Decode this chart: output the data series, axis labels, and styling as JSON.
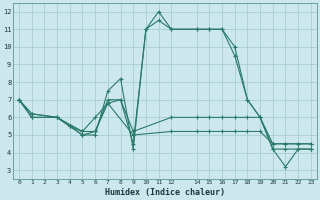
{
  "xlabel": "Humidex (Indice chaleur)",
  "bg_color": "#cce8ee",
  "grid_color": "#a8cdd4",
  "line_color": "#2a7a6a",
  "xlim": [
    -0.5,
    23.5
  ],
  "ylim": [
    2.5,
    12.5
  ],
  "xticks": [
    0,
    1,
    2,
    3,
    4,
    5,
    6,
    7,
    8,
    9,
    10,
    11,
    12,
    14,
    15,
    16,
    17,
    18,
    19,
    20,
    21,
    22,
    23
  ],
  "yticks": [
    3,
    4,
    5,
    6,
    7,
    8,
    9,
    10,
    11,
    12
  ],
  "lines": [
    {
      "x": [
        0,
        1,
        3,
        4,
        5,
        6,
        7,
        8,
        9,
        10,
        11,
        12,
        14,
        15,
        16,
        17,
        18,
        19,
        20,
        21,
        22,
        23
      ],
      "y": [
        7,
        6,
        6,
        5.5,
        5,
        5,
        7.5,
        8.2,
        4.2,
        11,
        12,
        11,
        11,
        11,
        11,
        10,
        7,
        6,
        4.2,
        4.2,
        4.2,
        4.2
      ]
    },
    {
      "x": [
        0,
        1,
        3,
        4,
        5,
        6,
        7,
        8,
        9,
        10,
        11,
        12,
        14,
        15,
        16,
        17,
        18,
        19,
        20,
        21,
        22,
        23
      ],
      "y": [
        7,
        6,
        6,
        5.5,
        5.2,
        5.2,
        7,
        7,
        4.5,
        11,
        11.5,
        11,
        11,
        11,
        11,
        9.5,
        7,
        6,
        4.2,
        3.2,
        4.2,
        4.2
      ]
    },
    {
      "x": [
        0,
        1,
        3,
        5,
        6,
        7,
        8,
        9,
        12,
        14,
        15,
        16,
        17,
        18,
        19,
        20,
        21,
        22,
        23
      ],
      "y": [
        7,
        6.2,
        6,
        5.2,
        6,
        6.8,
        7,
        5.2,
        6,
        6,
        6,
        6,
        6,
        6,
        6,
        4.5,
        4.5,
        4.5,
        4.5
      ]
    },
    {
      "x": [
        0,
        1,
        3,
        4,
        5,
        6,
        7,
        9,
        12,
        14,
        15,
        16,
        17,
        18,
        19,
        20,
        21,
        22,
        23
      ],
      "y": [
        7,
        6.2,
        6,
        5.5,
        5,
        5.2,
        6.8,
        5,
        5.2,
        5.2,
        5.2,
        5.2,
        5.2,
        5.2,
        5.2,
        4.5,
        4.5,
        4.5,
        4.5
      ]
    }
  ]
}
